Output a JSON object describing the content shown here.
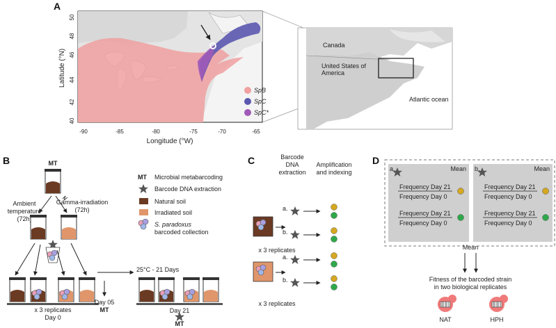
{
  "panels": {
    "a": "A",
    "b": "B",
    "c": "C",
    "d": "D"
  },
  "map": {
    "y_label": "Latitude (°N)",
    "x_label": "Longitude (°W)",
    "x_ticks": [
      "-90",
      "-85",
      "-80",
      "-75",
      "-70",
      "-65"
    ],
    "y_ticks": [
      "50",
      "48",
      "46",
      "44",
      "42",
      "40"
    ],
    "legend": [
      "SpB",
      "SpC",
      "SpC*"
    ],
    "colors": {
      "SpB": "#f0a0a0",
      "SpC": "#5b58b0",
      "SpC*": "#a05ab8"
    },
    "inset": {
      "canada": "Canada",
      "usa_line1": "United States of",
      "usa_line2": "America",
      "ocean": "Atlantic ocean"
    }
  },
  "b": {
    "mt_top": "MT",
    "ambient": [
      "Ambient",
      "temperature",
      "(72h)"
    ],
    "gamma": [
      "Gamma-irradiation",
      "(72h)"
    ],
    "legend": {
      "mt_abbr": "MT",
      "mt_text": "Microbial metabarcoding",
      "star_text": "Barcode DNA extraction",
      "natural": "Natural soil",
      "irradiated": "Irradiated soil",
      "collection_species": "S. paradoxus",
      "collection_rest": "barcoded collection"
    },
    "incubation": "25°C - 21 Days",
    "replicates": "x 3 replicates",
    "day0": "Day 0",
    "day05": "Day 05",
    "mt_day05": "MT",
    "day21": "Day 21",
    "mt_day21": "MT"
  },
  "c": {
    "col1": [
      "Barcode",
      "DNA",
      "extraction"
    ],
    "col2": [
      "Amplification",
      "and indexing"
    ],
    "a": "a.",
    "b": "b.",
    "replicates1": "x 3 replicates",
    "replicates2": "x 3 replicates"
  },
  "d": {
    "a": "a.",
    "b": "b.",
    "mean": "Mean",
    "num": "Frequency Day 21",
    "den": "Frequency Day 0",
    "mean_bottom": "Mean",
    "fitness1": "Fitness of the barcoded strain",
    "fitness2": "in two biological replicates",
    "nat": "NAT",
    "hph": "HPH"
  }
}
